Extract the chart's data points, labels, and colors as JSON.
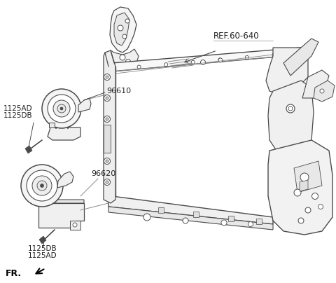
{
  "bg_color": "#ffffff",
  "line_color": "#4a4a4a",
  "light_color": "#888888",
  "text_color": "#222222",
  "labels": {
    "ref": "REF.60-640",
    "part1": "96610",
    "part2": "96620",
    "bolt1_line1": "1125AD",
    "bolt1_line2": "1125DB",
    "bolt2_line1": "1125DB",
    "bolt2_line2": "1125AD",
    "fr": "FR."
  },
  "figsize": [
    4.8,
    4.04
  ],
  "dpi": 100
}
